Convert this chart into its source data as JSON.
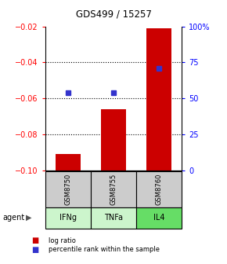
{
  "title": "GDS499 / 15257",
  "samples": [
    "GSM8750",
    "GSM8755",
    "GSM8760"
  ],
  "agents": [
    "IFNg",
    "TNFa",
    "IL4"
  ],
  "log_ratios": [
    -0.091,
    -0.066,
    -0.021
  ],
  "percentile_ranks": [
    54,
    54,
    71
  ],
  "bar_color": "#cc0000",
  "dot_color": "#3333cc",
  "left_ylim": [
    -0.1,
    -0.02
  ],
  "left_yticks": [
    -0.1,
    -0.08,
    -0.06,
    -0.04,
    -0.02
  ],
  "right_ylim": [
    0,
    100
  ],
  "right_yticks": [
    0,
    25,
    50,
    75,
    100
  ],
  "right_yticklabels": [
    "0",
    "25",
    "50",
    "75",
    "100%"
  ],
  "gridlines": [
    -0.04,
    -0.06,
    -0.08
  ],
  "agent_colors": [
    "#ccf5cc",
    "#ccf5cc",
    "#66dd66"
  ],
  "sample_bg_color": "#cccccc",
  "agent_label": "agent"
}
